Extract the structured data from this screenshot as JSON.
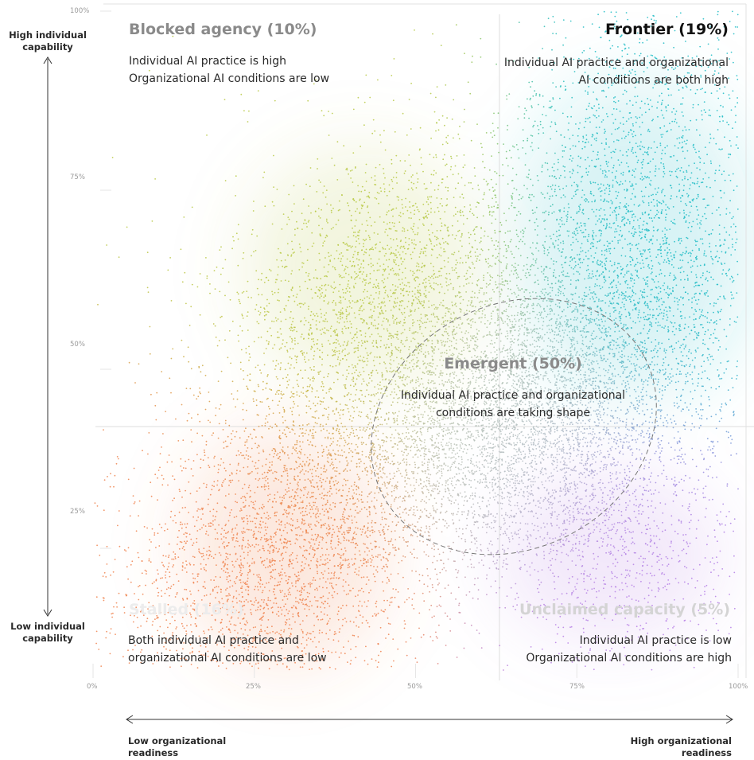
{
  "chart_data": {
    "type": "scatter",
    "title": "",
    "x_axis": {
      "low_label": "Low organizational readiness",
      "high_label": "High organizational readiness",
      "ticks": [
        "0%",
        "25%",
        "50%",
        "75%",
        "100%"
      ],
      "range": [
        0,
        100
      ]
    },
    "y_axis": {
      "high_label": "High individual capability",
      "low_label": "Low individual capability",
      "ticks": [
        "100%",
        "75%",
        "50%",
        "25%"
      ],
      "range": [
        8,
        100
      ]
    },
    "dividers": {
      "x": 63,
      "y": 42
    },
    "quadrants": [
      {
        "key": "blocked",
        "title": "Blocked agency (10%)",
        "share": 10,
        "description": [
          "Individual AI practice is high",
          "Organizational AI conditions are low"
        ],
        "color": "#8a8a8a"
      },
      {
        "key": "frontier",
        "title": "Frontier (19%)",
        "share": 19,
        "description": [
          "Individual AI practice and organizational",
          "AI conditions are both high"
        ],
        "color": "#111111"
      },
      {
        "key": "stalled",
        "title": "Stalled (16%)",
        "share": 16,
        "description": [
          "Both individual AI practice and",
          "organizational AI conditions are low"
        ],
        "color": "#ececec"
      },
      {
        "key": "unclaimed",
        "title": "Unclaimed capacity (5%)",
        "share": 5,
        "description": [
          "Individual AI practice is low",
          "Organizational AI conditions are high"
        ],
        "color": "#d4d4d4"
      },
      {
        "key": "emergent",
        "title": "Emergent (50%)",
        "share": 50,
        "description": [
          "Individual AI practice and organizational",
          "conditions are taking shape"
        ],
        "color": "#8a8a8a"
      }
    ],
    "series_colors": {
      "stalled": "#f0824e",
      "blocked": "#b9c944",
      "frontier": "#1fbcc6",
      "unclaimed": "#b77ee6",
      "emergent": "#b8c4c4"
    },
    "emergent_region": {
      "center": [
        64,
        42
      ],
      "radius_x": 18,
      "radius_y": 17
    },
    "cluster_centers": {
      "stalled": [
        30,
        25
      ],
      "blocked": [
        45,
        62
      ],
      "frontier": [
        85,
        65
      ],
      "unclaimed": [
        80,
        25
      ]
    }
  }
}
